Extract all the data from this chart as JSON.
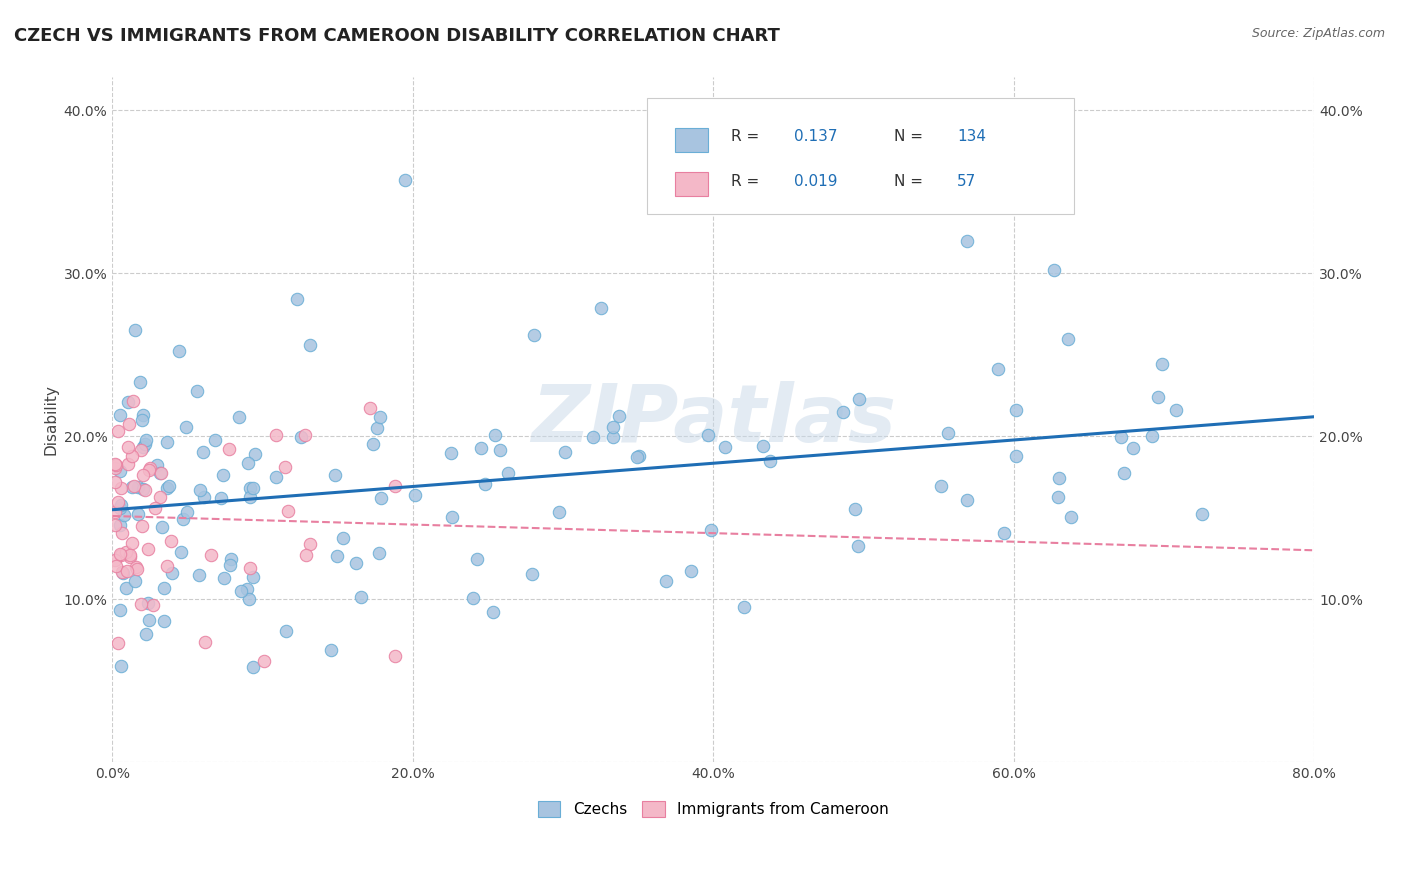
{
  "title": "CZECH VS IMMIGRANTS FROM CAMEROON DISABILITY CORRELATION CHART",
  "source": "Source: ZipAtlas.com",
  "watermark": "ZIPatlas",
  "ylabel": "Disability",
  "xlim": [
    0.0,
    0.8
  ],
  "ylim": [
    0.0,
    0.42
  ],
  "xticks": [
    0.0,
    0.2,
    0.4,
    0.6,
    0.8
  ],
  "xtick_labels": [
    "0.0%",
    "20.0%",
    "40.0%",
    "60.0%",
    "80.0%"
  ],
  "yticks": [
    0.0,
    0.1,
    0.2,
    0.3,
    0.4
  ],
  "ytick_labels": [
    "",
    "10.0%",
    "20.0%",
    "30.0%",
    "40.0%"
  ],
  "czech_color": "#a8c4e0",
  "czech_edge": "#6aaed6",
  "camroon_color": "#f4b8c8",
  "camroon_edge": "#e87fa0",
  "czech_line_color": "#1f6eb5",
  "camroon_line_color": "#e87fa0",
  "R_czech": 0.137,
  "N_czech": 134,
  "R_camroon": 0.019,
  "N_camroon": 57,
  "background_color": "#ffffff",
  "grid_color": "#cccccc",
  "title_fontsize": 13,
  "axis_fontsize": 11,
  "tick_fontsize": 10,
  "legend_fontsize": 11,
  "legend_label_1": "Czechs",
  "legend_label_2": "Immigrants from Cameroon",
  "blue_text_color": "#1f6eb5"
}
